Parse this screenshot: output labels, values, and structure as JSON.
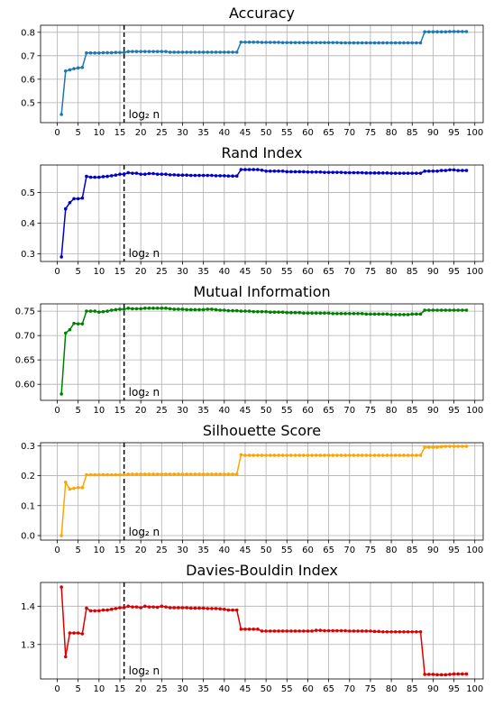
{
  "chart_data": [
    {
      "type": "line",
      "title": "Accuracy",
      "color": "#1f77b4",
      "x": [
        1,
        2,
        3,
        4,
        5,
        6,
        7,
        8,
        9,
        10,
        11,
        12,
        13,
        14,
        15,
        16,
        17,
        18,
        19,
        20,
        21,
        22,
        23,
        24,
        25,
        26,
        27,
        28,
        29,
        30,
        31,
        32,
        33,
        34,
        35,
        36,
        37,
        38,
        39,
        40,
        41,
        42,
        43,
        44,
        45,
        46,
        47,
        48,
        49,
        50,
        51,
        52,
        53,
        54,
        55,
        56,
        57,
        58,
        59,
        60,
        61,
        62,
        63,
        64,
        65,
        66,
        67,
        68,
        69,
        70,
        71,
        72,
        73,
        74,
        75,
        76,
        77,
        78,
        79,
        80,
        81,
        82,
        83,
        84,
        85,
        86,
        87,
        88,
        89,
        90,
        91,
        92,
        93,
        94,
        95,
        96,
        97,
        98
      ],
      "y": [
        0.45,
        0.635,
        0.64,
        0.645,
        0.648,
        0.65,
        0.712,
        0.712,
        0.712,
        0.712,
        0.713,
        0.713,
        0.713,
        0.714,
        0.714,
        0.714,
        0.718,
        0.718,
        0.718,
        0.718,
        0.718,
        0.718,
        0.718,
        0.718,
        0.718,
        0.718,
        0.715,
        0.715,
        0.715,
        0.715,
        0.715,
        0.715,
        0.715,
        0.715,
        0.715,
        0.715,
        0.715,
        0.715,
        0.715,
        0.715,
        0.715,
        0.715,
        0.715,
        0.758,
        0.758,
        0.758,
        0.758,
        0.758,
        0.757,
        0.757,
        0.757,
        0.757,
        0.757,
        0.756,
        0.756,
        0.756,
        0.756,
        0.756,
        0.756,
        0.756,
        0.756,
        0.756,
        0.756,
        0.756,
        0.756,
        0.756,
        0.756,
        0.755,
        0.755,
        0.755,
        0.755,
        0.755,
        0.755,
        0.755,
        0.755,
        0.755,
        0.755,
        0.755,
        0.755,
        0.755,
        0.755,
        0.755,
        0.755,
        0.755,
        0.755,
        0.755,
        0.755,
        0.802,
        0.802,
        0.802,
        0.802,
        0.802,
        0.802,
        0.803,
        0.803,
        0.803,
        0.803,
        0.803
      ],
      "xlim": [
        -4,
        102
      ],
      "ylim": [
        0.415,
        0.83
      ],
      "yticks": [
        0.5,
        0.6,
        0.7,
        0.8
      ],
      "ytick_labels": [
        "0.5",
        "0.6",
        "0.7",
        "0.8"
      ],
      "xticks": [
        0,
        5,
        10,
        15,
        20,
        25,
        30,
        35,
        40,
        45,
        50,
        55,
        60,
        65,
        70,
        75,
        80,
        85,
        90,
        95,
        100
      ],
      "xtick_labels": [
        "0",
        "5",
        "10",
        "15",
        "20",
        "25",
        "30",
        "35",
        "40",
        "45",
        "50",
        "55",
        "60",
        "65",
        "70",
        "75",
        "80",
        "85",
        "90",
        "95",
        "100"
      ],
      "vline_x": 16,
      "annotation": "log₂ n",
      "grid": true
    },
    {
      "type": "line",
      "title": "Rand Index",
      "color": "#0000cc",
      "x": [
        1,
        2,
        3,
        4,
        5,
        6,
        7,
        8,
        9,
        10,
        11,
        12,
        13,
        14,
        15,
        16,
        17,
        18,
        19,
        20,
        21,
        22,
        23,
        24,
        25,
        26,
        27,
        28,
        29,
        30,
        31,
        32,
        33,
        34,
        35,
        36,
        37,
        38,
        39,
        40,
        41,
        42,
        43,
        44,
        45,
        46,
        47,
        48,
        49,
        50,
        51,
        52,
        53,
        54,
        55,
        56,
        57,
        58,
        59,
        60,
        61,
        62,
        63,
        64,
        65,
        66,
        67,
        68,
        69,
        70,
        71,
        72,
        73,
        74,
        75,
        76,
        77,
        78,
        79,
        80,
        81,
        82,
        83,
        84,
        85,
        86,
        87,
        88,
        89,
        90,
        91,
        92,
        93,
        94,
        95,
        96,
        97,
        98
      ],
      "y": [
        0.29,
        0.447,
        0.467,
        0.48,
        0.48,
        0.482,
        0.553,
        0.55,
        0.55,
        0.55,
        0.552,
        0.553,
        0.555,
        0.557,
        0.56,
        0.56,
        0.565,
        0.563,
        0.563,
        0.56,
        0.56,
        0.562,
        0.562,
        0.56,
        0.56,
        0.56,
        0.558,
        0.558,
        0.557,
        0.557,
        0.557,
        0.556,
        0.556,
        0.556,
        0.556,
        0.556,
        0.556,
        0.555,
        0.555,
        0.555,
        0.554,
        0.554,
        0.554,
        0.575,
        0.575,
        0.575,
        0.575,
        0.575,
        0.573,
        0.57,
        0.57,
        0.57,
        0.57,
        0.57,
        0.568,
        0.568,
        0.568,
        0.568,
        0.568,
        0.567,
        0.567,
        0.567,
        0.567,
        0.566,
        0.566,
        0.566,
        0.566,
        0.566,
        0.565,
        0.565,
        0.565,
        0.565,
        0.565,
        0.564,
        0.564,
        0.564,
        0.564,
        0.564,
        0.564,
        0.563,
        0.563,
        0.563,
        0.563,
        0.563,
        0.563,
        0.563,
        0.563,
        0.57,
        0.57,
        0.57,
        0.57,
        0.572,
        0.572,
        0.574,
        0.574,
        0.572,
        0.572,
        0.572
      ],
      "xlim": [
        -4,
        102
      ],
      "ylim": [
        0.275,
        0.59
      ],
      "yticks": [
        0.3,
        0.4,
        0.5
      ],
      "ytick_labels": [
        "0.3",
        "0.4",
        "0.5"
      ],
      "xticks": [
        0,
        5,
        10,
        15,
        20,
        25,
        30,
        35,
        40,
        45,
        50,
        55,
        60,
        65,
        70,
        75,
        80,
        85,
        90,
        95,
        100
      ],
      "xtick_labels": [
        "0",
        "5",
        "10",
        "15",
        "20",
        "25",
        "30",
        "35",
        "40",
        "45",
        "50",
        "55",
        "60",
        "65",
        "70",
        "75",
        "80",
        "85",
        "90",
        "95",
        "100"
      ],
      "vline_x": 16,
      "annotation": "log₂ n",
      "grid": true
    },
    {
      "type": "line",
      "title": "Mutual Information",
      "color": "#008000",
      "x": [
        1,
        2,
        3,
        4,
        5,
        6,
        7,
        8,
        9,
        10,
        11,
        12,
        13,
        14,
        15,
        16,
        17,
        18,
        19,
        20,
        21,
        22,
        23,
        24,
        25,
        26,
        27,
        28,
        29,
        30,
        31,
        32,
        33,
        34,
        35,
        36,
        37,
        38,
        39,
        40,
        41,
        42,
        43,
        44,
        45,
        46,
        47,
        48,
        49,
        50,
        51,
        52,
        53,
        54,
        55,
        56,
        57,
        58,
        59,
        60,
        61,
        62,
        63,
        64,
        65,
        66,
        67,
        68,
        69,
        70,
        71,
        72,
        73,
        74,
        75,
        76,
        77,
        78,
        79,
        80,
        81,
        82,
        83,
        84,
        85,
        86,
        87,
        88,
        89,
        90,
        91,
        92,
        93,
        94,
        95,
        96,
        97,
        98
      ],
      "y": [
        0.58,
        0.705,
        0.712,
        0.725,
        0.724,
        0.724,
        0.75,
        0.75,
        0.75,
        0.748,
        0.749,
        0.75,
        0.752,
        0.753,
        0.754,
        0.754,
        0.756,
        0.755,
        0.755,
        0.755,
        0.756,
        0.756,
        0.756,
        0.756,
        0.756,
        0.756,
        0.755,
        0.754,
        0.754,
        0.754,
        0.753,
        0.753,
        0.753,
        0.753,
        0.753,
        0.754,
        0.754,
        0.753,
        0.752,
        0.752,
        0.751,
        0.751,
        0.751,
        0.75,
        0.75,
        0.75,
        0.749,
        0.749,
        0.749,
        0.749,
        0.748,
        0.748,
        0.748,
        0.748,
        0.747,
        0.747,
        0.747,
        0.747,
        0.746,
        0.746,
        0.746,
        0.746,
        0.746,
        0.746,
        0.746,
        0.745,
        0.745,
        0.745,
        0.745,
        0.745,
        0.745,
        0.745,
        0.745,
        0.744,
        0.744,
        0.744,
        0.744,
        0.744,
        0.744,
        0.743,
        0.743,
        0.743,
        0.743,
        0.743,
        0.744,
        0.744,
        0.744,
        0.752,
        0.752,
        0.752,
        0.752,
        0.752,
        0.752,
        0.752,
        0.752,
        0.752,
        0.752,
        0.752
      ],
      "xlim": [
        -4,
        102
      ],
      "ylim": [
        0.567,
        0.765
      ],
      "yticks": [
        0.6,
        0.65,
        0.7,
        0.75
      ],
      "ytick_labels": [
        "0.60",
        "0.65",
        "0.70",
        "0.75"
      ],
      "xticks": [
        0,
        5,
        10,
        15,
        20,
        25,
        30,
        35,
        40,
        45,
        50,
        55,
        60,
        65,
        70,
        75,
        80,
        85,
        90,
        95,
        100
      ],
      "xtick_labels": [
        "0",
        "5",
        "10",
        "15",
        "20",
        "25",
        "30",
        "35",
        "40",
        "45",
        "50",
        "55",
        "60",
        "65",
        "70",
        "75",
        "80",
        "85",
        "90",
        "95",
        "100"
      ],
      "vline_x": 16,
      "annotation": "log₂ n",
      "grid": true
    },
    {
      "type": "line",
      "title": "Silhouette Score",
      "color": "#ffa500",
      "x": [
        1,
        2,
        3,
        4,
        5,
        6,
        7,
        8,
        9,
        10,
        11,
        12,
        13,
        14,
        15,
        16,
        17,
        18,
        19,
        20,
        21,
        22,
        23,
        24,
        25,
        26,
        27,
        28,
        29,
        30,
        31,
        32,
        33,
        34,
        35,
        36,
        37,
        38,
        39,
        40,
        41,
        42,
        43,
        44,
        45,
        46,
        47,
        48,
        49,
        50,
        51,
        52,
        53,
        54,
        55,
        56,
        57,
        58,
        59,
        60,
        61,
        62,
        63,
        64,
        65,
        66,
        67,
        68,
        69,
        70,
        71,
        72,
        73,
        74,
        75,
        76,
        77,
        78,
        79,
        80,
        81,
        82,
        83,
        84,
        85,
        86,
        87,
        88,
        89,
        90,
        91,
        92,
        93,
        94,
        95,
        96,
        97,
        98
      ],
      "y": [
        0.0,
        0.178,
        0.155,
        0.158,
        0.16,
        0.16,
        0.203,
        0.203,
        0.203,
        0.203,
        0.203,
        0.203,
        0.203,
        0.203,
        0.203,
        0.203,
        0.205,
        0.205,
        0.205,
        0.205,
        0.205,
        0.205,
        0.205,
        0.205,
        0.205,
        0.205,
        0.205,
        0.205,
        0.205,
        0.205,
        0.205,
        0.205,
        0.205,
        0.205,
        0.205,
        0.205,
        0.205,
        0.205,
        0.205,
        0.205,
        0.205,
        0.205,
        0.205,
        0.27,
        0.268,
        0.268,
        0.268,
        0.268,
        0.268,
        0.268,
        0.268,
        0.268,
        0.268,
        0.268,
        0.268,
        0.268,
        0.268,
        0.268,
        0.268,
        0.268,
        0.268,
        0.268,
        0.268,
        0.268,
        0.268,
        0.268,
        0.268,
        0.268,
        0.268,
        0.268,
        0.268,
        0.268,
        0.268,
        0.268,
        0.268,
        0.268,
        0.268,
        0.268,
        0.268,
        0.268,
        0.268,
        0.268,
        0.268,
        0.268,
        0.268,
        0.268,
        0.268,
        0.295,
        0.295,
        0.295,
        0.295,
        0.297,
        0.298,
        0.298,
        0.298,
        0.298,
        0.298,
        0.298
      ],
      "xlim": [
        -4,
        102
      ],
      "ylim": [
        -0.015,
        0.31
      ],
      "yticks": [
        0.0,
        0.1,
        0.2,
        0.3
      ],
      "ytick_labels": [
        "0.0",
        "0.1",
        "0.2",
        "0.3"
      ],
      "xticks": [
        0,
        5,
        10,
        15,
        20,
        25,
        30,
        35,
        40,
        45,
        50,
        55,
        60,
        65,
        70,
        75,
        80,
        85,
        90,
        95,
        100
      ],
      "xtick_labels": [
        "0",
        "5",
        "10",
        "15",
        "20",
        "25",
        "30",
        "35",
        "40",
        "45",
        "50",
        "55",
        "60",
        "65",
        "70",
        "75",
        "80",
        "85",
        "90",
        "95",
        "100"
      ],
      "vline_x": 16,
      "annotation": "log₂ n",
      "grid": true
    },
    {
      "type": "line",
      "title": "Davies-Bouldin Index",
      "color": "#dd0000",
      "x": [
        1,
        2,
        3,
        4,
        5,
        6,
        7,
        8,
        9,
        10,
        11,
        12,
        13,
        14,
        15,
        16,
        17,
        18,
        19,
        20,
        21,
        22,
        23,
        24,
        25,
        26,
        27,
        28,
        29,
        30,
        31,
        32,
        33,
        34,
        35,
        36,
        37,
        38,
        39,
        40,
        41,
        42,
        43,
        44,
        45,
        46,
        47,
        48,
        49,
        50,
        51,
        52,
        53,
        54,
        55,
        56,
        57,
        58,
        59,
        60,
        61,
        62,
        63,
        64,
        65,
        66,
        67,
        68,
        69,
        70,
        71,
        72,
        73,
        74,
        75,
        76,
        77,
        78,
        79,
        80,
        81,
        82,
        83,
        84,
        85,
        86,
        87,
        88,
        89,
        90,
        91,
        92,
        93,
        94,
        95,
        96,
        97,
        98
      ],
      "y": [
        1.45,
        1.268,
        1.33,
        1.33,
        1.33,
        1.328,
        1.395,
        1.388,
        1.388,
        1.388,
        1.39,
        1.39,
        1.392,
        1.394,
        1.396,
        1.396,
        1.4,
        1.398,
        1.398,
        1.396,
        1.4,
        1.398,
        1.398,
        1.397,
        1.4,
        1.398,
        1.396,
        1.396,
        1.396,
        1.396,
        1.396,
        1.395,
        1.395,
        1.395,
        1.395,
        1.394,
        1.394,
        1.394,
        1.393,
        1.392,
        1.39,
        1.39,
        1.39,
        1.34,
        1.34,
        1.34,
        1.34,
        1.34,
        1.335,
        1.335,
        1.335,
        1.335,
        1.335,
        1.335,
        1.335,
        1.335,
        1.335,
        1.335,
        1.335,
        1.335,
        1.335,
        1.337,
        1.337,
        1.336,
        1.336,
        1.336,
        1.336,
        1.336,
        1.336,
        1.335,
        1.335,
        1.335,
        1.335,
        1.335,
        1.335,
        1.334,
        1.334,
        1.333,
        1.333,
        1.333,
        1.333,
        1.333,
        1.333,
        1.333,
        1.333,
        1.333,
        1.333,
        1.222,
        1.222,
        1.222,
        1.221,
        1.221,
        1.221,
        1.222,
        1.223,
        1.223,
        1.223,
        1.223
      ],
      "xlim": [
        -4,
        102
      ],
      "ylim": [
        1.21,
        1.462
      ],
      "yticks": [
        1.3,
        1.4
      ],
      "ytick_labels": [
        "1.3",
        "1.4"
      ],
      "xticks": [
        0,
        5,
        10,
        15,
        20,
        25,
        30,
        35,
        40,
        45,
        50,
        55,
        60,
        65,
        70,
        75,
        80,
        85,
        90,
        95,
        100
      ],
      "xtick_labels": [
        "0",
        "5",
        "10",
        "15",
        "20",
        "25",
        "30",
        "35",
        "40",
        "45",
        "50",
        "55",
        "60",
        "65",
        "70",
        "75",
        "80",
        "85",
        "90",
        "95",
        "100"
      ],
      "vline_x": 16,
      "annotation": "log₂ n",
      "grid": true
    }
  ]
}
